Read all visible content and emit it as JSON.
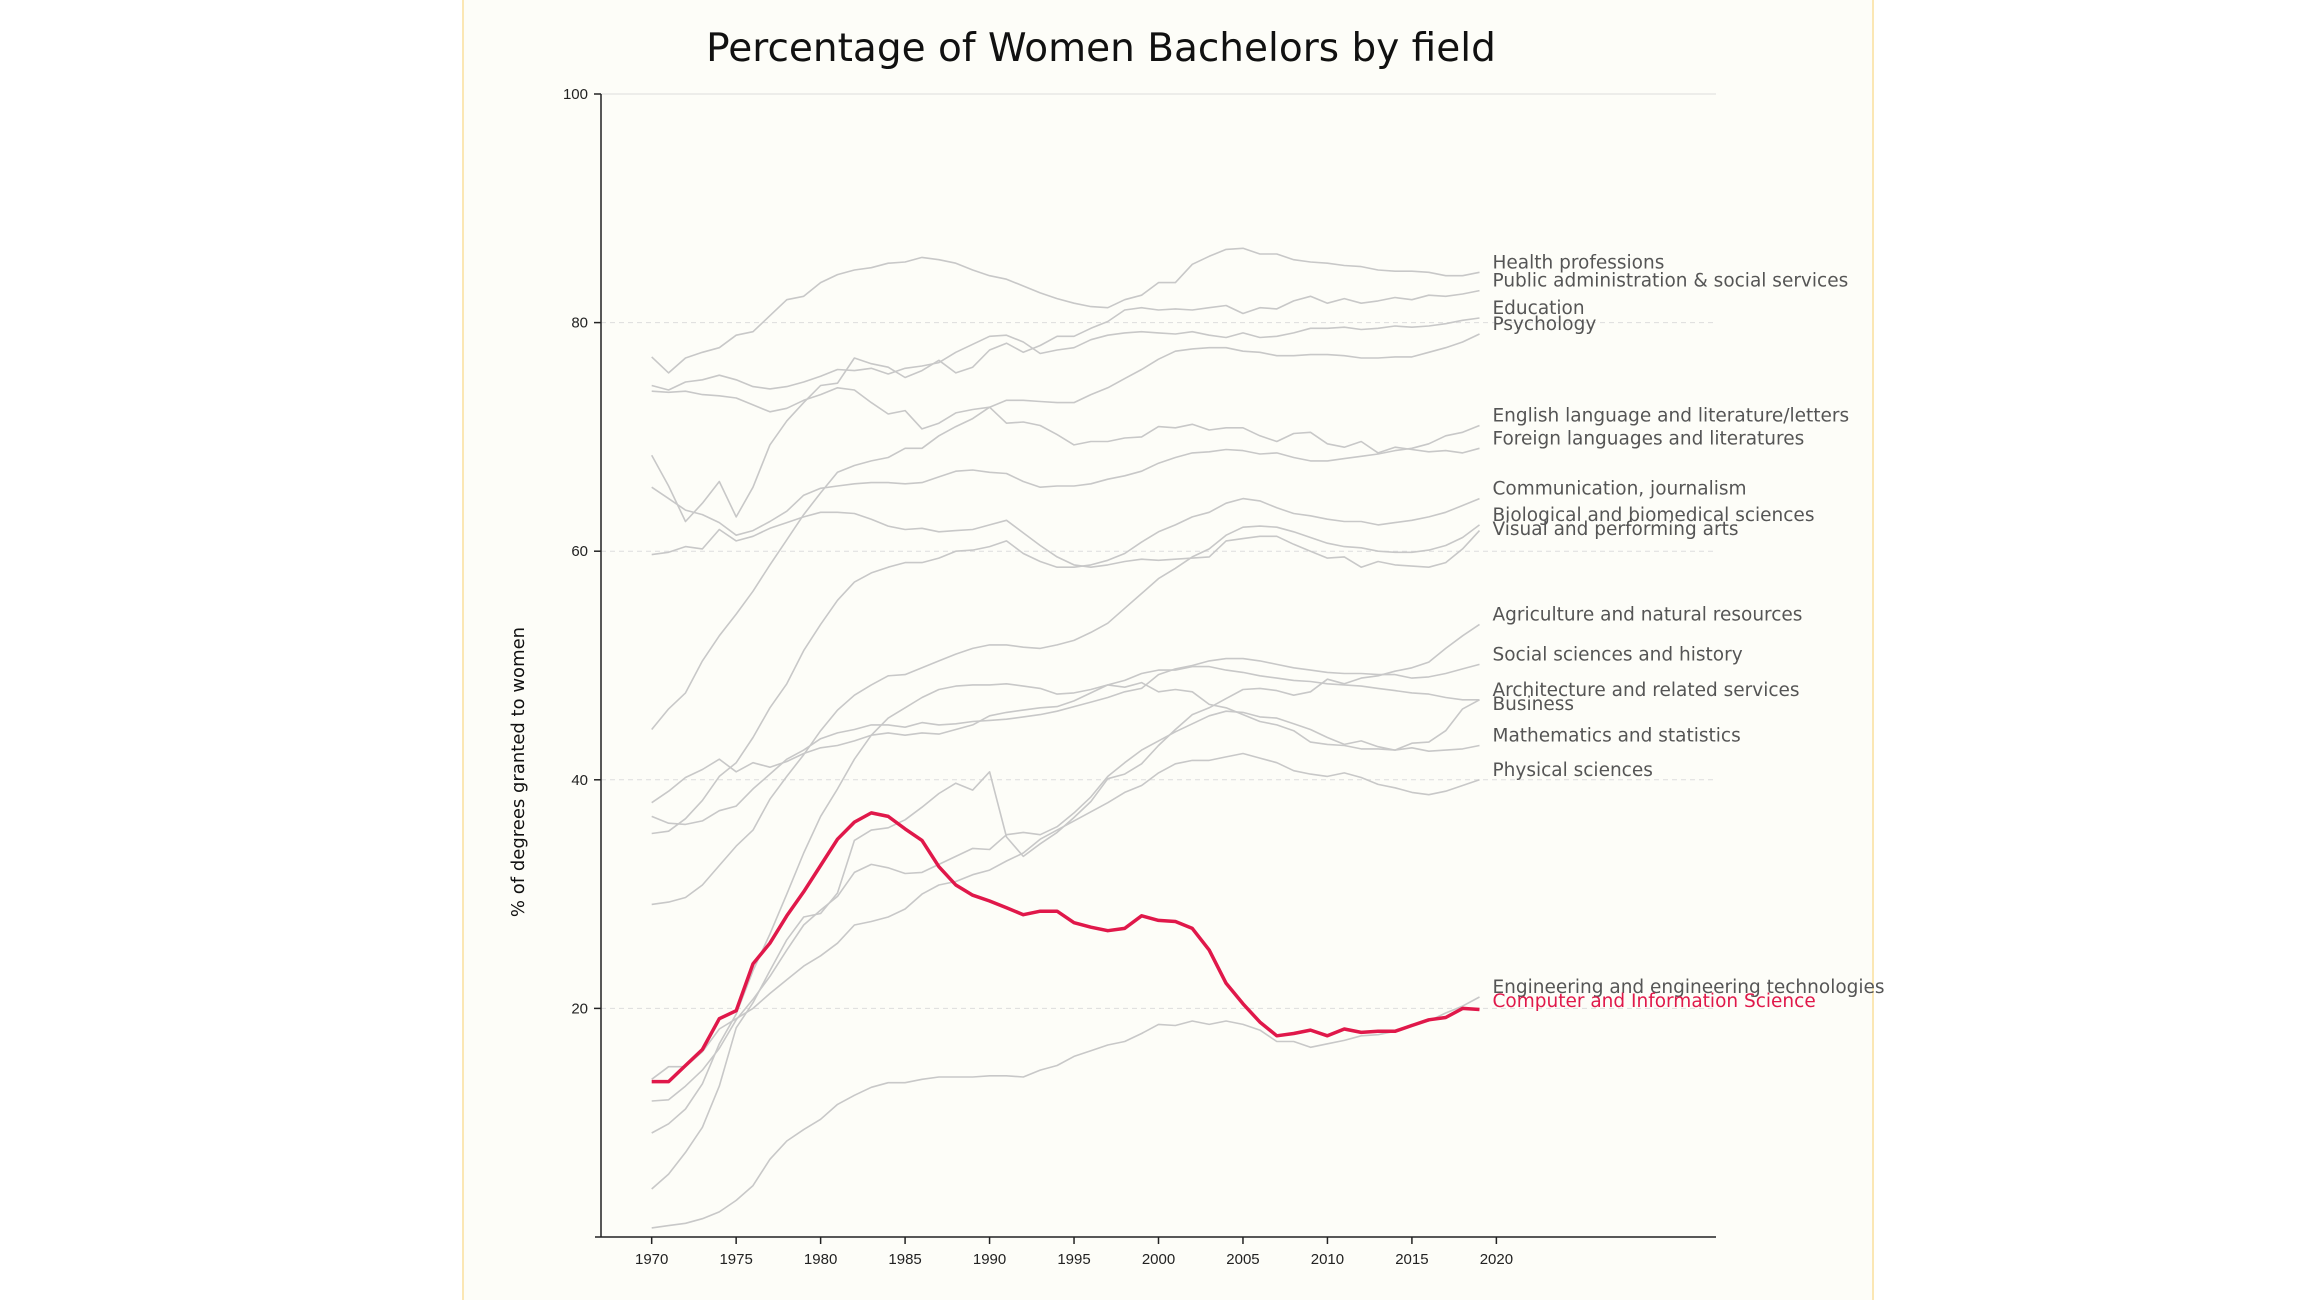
{
  "chart_data": {
    "type": "line",
    "title": "Percentage of Women Bachelors by field",
    "xlabel": "",
    "ylabel": "% of degrees granted to women",
    "xlim": [
      1967,
      2033
    ],
    "ylim": [
      0,
      100
    ],
    "xticks": [
      1970,
      1975,
      1980,
      1985,
      1990,
      1995,
      2000,
      2005,
      2010,
      2015,
      2020
    ],
    "yticks": [
      20,
      40,
      60,
      80,
      100
    ],
    "grid": "horizontal dashed",
    "legend": "direct labels at line ends",
    "colors": {
      "line": "#c8c8c8",
      "highlight": "#e0184a",
      "axis": "#222222",
      "grid": "#dddddd"
    },
    "highlight": "Computer and Information Science",
    "years": [
      1970,
      1971,
      1972,
      1973,
      1974,
      1975,
      1976,
      1977,
      1978,
      1979,
      1980,
      1981,
      1982,
      1983,
      1984,
      1985,
      1986,
      1987,
      1988,
      1989,
      1990,
      1991,
      1992,
      1993,
      1994,
      1995,
      1996,
      1997,
      1998,
      1999,
      2000,
      2001,
      2002,
      2003,
      2004,
      2005,
      2006,
      2007,
      2008,
      2009,
      2010,
      2011,
      2012,
      2013,
      2014,
      2015,
      2016,
      2017,
      2018,
      2019
    ],
    "series": [
      {
        "name": "Health professions",
        "values": [
          77.0,
          75.6,
          76.9,
          77.4,
          77.8,
          78.9,
          79.2,
          80.6,
          82.0,
          82.3,
          83.5,
          84.2,
          84.6,
          84.8,
          85.2,
          85.3,
          85.7,
          85.5,
          85.2,
          84.6,
          84.1,
          83.8,
          83.2,
          82.6,
          82.1,
          81.7,
          81.4,
          81.3,
          82.0,
          82.4,
          83.5,
          83.5,
          85.1,
          85.8,
          86.4,
          86.5,
          86.0,
          86.0,
          85.5,
          85.3,
          85.2,
          85.0,
          84.9,
          84.6,
          84.5,
          84.5,
          84.4,
          84.1,
          84.1,
          84.4
        ]
      },
      {
        "name": "Public administration & social services",
        "values": [
          68.4,
          65.7,
          62.6,
          64.2,
          66.1,
          63.0,
          65.6,
          69.3,
          71.4,
          73.0,
          74.5,
          74.7,
          76.9,
          76.4,
          76.1,
          75.2,
          75.8,
          76.7,
          75.6,
          76.1,
          77.6,
          78.2,
          77.4,
          78.0,
          78.8,
          78.8,
          79.5,
          80.1,
          81.1,
          81.3,
          81.1,
          81.2,
          81.1,
          81.3,
          81.5,
          80.8,
          81.3,
          81.2,
          81.9,
          82.3,
          81.7,
          82.1,
          81.7,
          81.9,
          82.2,
          82.0,
          82.4,
          82.3,
          82.5,
          82.8
        ]
      },
      {
        "name": "Education",
        "values": [
          74.5,
          74.1,
          74.8,
          75.0,
          75.4,
          75.0,
          74.4,
          74.2,
          74.4,
          74.8,
          75.3,
          75.9,
          75.8,
          76.0,
          75.5,
          76.0,
          76.2,
          76.5,
          77.4,
          78.1,
          78.8,
          78.9,
          78.3,
          77.3,
          77.6,
          77.8,
          78.5,
          78.9,
          79.1,
          79.2,
          79.1,
          79.0,
          79.2,
          78.9,
          78.7,
          79.1,
          78.7,
          78.8,
          79.1,
          79.5,
          79.5,
          79.6,
          79.4,
          79.5,
          79.7,
          79.6,
          79.7,
          79.9,
          80.2,
          80.4
        ]
      },
      {
        "name": "Psychology",
        "values": [
          44.4,
          46.2,
          47.6,
          50.4,
          52.6,
          54.5,
          56.5,
          58.8,
          61.0,
          63.2,
          65.1,
          66.9,
          67.5,
          67.9,
          68.2,
          69.0,
          69.0,
          70.1,
          70.9,
          71.6,
          72.6,
          73.2,
          73.2,
          73.1,
          73.0,
          73.0,
          73.7,
          74.3,
          75.1,
          75.9,
          76.8,
          77.5,
          77.7,
          77.8,
          77.8,
          77.5,
          77.4,
          77.1,
          77.1,
          77.2,
          77.2,
          77.1,
          76.9,
          76.9,
          77.0,
          77.0,
          77.4,
          77.8,
          78.3,
          79.0
        ]
      },
      {
        "name": "English language and literature/letters",
        "values": [
          65.6,
          64.6,
          63.6,
          63.2,
          62.5,
          61.4,
          61.8,
          62.6,
          63.5,
          64.9,
          65.5,
          65.7,
          65.9,
          66.0,
          66.0,
          65.9,
          66.0,
          66.5,
          67.0,
          67.1,
          66.9,
          66.8,
          66.1,
          65.6,
          65.7,
          65.7,
          65.9,
          66.3,
          66.6,
          67.0,
          67.7,
          68.2,
          68.6,
          68.7,
          68.9,
          68.8,
          68.5,
          68.6,
          68.2,
          67.9,
          67.9,
          68.1,
          68.3,
          68.5,
          68.8,
          69.0,
          69.4,
          70.1,
          70.4,
          71.0
        ]
      },
      {
        "name": "Foreign languages and literatures",
        "values": [
          74.0,
          73.9,
          74.0,
          73.7,
          73.6,
          73.4,
          72.8,
          72.2,
          72.5,
          73.2,
          73.7,
          74.3,
          74.1,
          73.0,
          72.0,
          72.3,
          70.7,
          71.2,
          72.1,
          72.4,
          72.6,
          71.2,
          71.3,
          71.0,
          70.2,
          69.3,
          69.6,
          69.6,
          69.9,
          70.0,
          70.9,
          70.8,
          71.1,
          70.6,
          70.8,
          70.8,
          70.1,
          69.6,
          70.3,
          70.4,
          69.4,
          69.1,
          69.6,
          68.6,
          69.1,
          68.9,
          68.7,
          68.8,
          68.6,
          69.0
        ]
      },
      {
        "name": "Communication, journalism",
        "values": [
          35.3,
          35.5,
          36.6,
          38.2,
          40.3,
          41.5,
          43.7,
          46.3,
          48.4,
          51.3,
          53.6,
          55.7,
          57.3,
          58.1,
          58.6,
          59.0,
          59.0,
          59.4,
          60.0,
          60.1,
          60.4,
          60.9,
          59.8,
          59.1,
          58.6,
          58.6,
          58.8,
          59.2,
          59.8,
          60.8,
          61.7,
          62.3,
          63.0,
          63.4,
          64.2,
          64.6,
          64.4,
          63.8,
          63.3,
          63.1,
          62.8,
          62.6,
          62.6,
          62.3,
          62.5,
          62.7,
          63.0,
          63.4,
          64.0,
          64.6
        ]
      },
      {
        "name": "Biological and biomedical sciences",
        "values": [
          29.1,
          29.3,
          29.7,
          30.8,
          32.5,
          34.2,
          35.6,
          38.3,
          40.3,
          42.2,
          44.3,
          46.1,
          47.4,
          48.3,
          49.1,
          49.2,
          49.8,
          50.4,
          51.0,
          51.5,
          51.8,
          51.8,
          51.6,
          51.5,
          51.8,
          52.2,
          52.9,
          53.7,
          55.0,
          56.3,
          57.6,
          58.5,
          59.5,
          60.2,
          61.4,
          62.1,
          62.2,
          62.1,
          61.7,
          61.2,
          60.7,
          60.4,
          60.3,
          60.0,
          59.9,
          59.9,
          60.1,
          60.5,
          61.2,
          62.3
        ]
      },
      {
        "name": "Visual and performing arts",
        "values": [
          59.7,
          59.9,
          60.4,
          60.2,
          61.9,
          60.9,
          61.3,
          62.0,
          62.5,
          63.0,
          63.4,
          63.4,
          63.3,
          62.8,
          62.2,
          61.9,
          62.0,
          61.7,
          61.8,
          61.9,
          62.3,
          62.7,
          61.6,
          60.5,
          59.5,
          58.8,
          58.6,
          58.8,
          59.1,
          59.3,
          59.2,
          59.3,
          59.4,
          59.5,
          60.9,
          61.1,
          61.3,
          61.3,
          60.6,
          60.0,
          59.4,
          59.5,
          58.6,
          59.1,
          58.8,
          58.7,
          58.6,
          59.0,
          60.2,
          61.8
        ]
      },
      {
        "name": "Agriculture and natural resources",
        "values": [
          4.2,
          5.5,
          7.4,
          9.6,
          13.2,
          18.3,
          20.5,
          23.3,
          26.0,
          28.0,
          28.3,
          30.1,
          34.7,
          35.6,
          35.8,
          36.5,
          37.6,
          38.8,
          39.7,
          39.1,
          40.7,
          35.0,
          33.3,
          34.4,
          35.4,
          36.7,
          38.1,
          40.1,
          40.5,
          41.4,
          43.0,
          44.4,
          45.7,
          46.3,
          47.1,
          47.9,
          48.0,
          47.8,
          47.4,
          47.7,
          48.8,
          48.4,
          48.9,
          49.1,
          49.5,
          49.8,
          50.3,
          51.5,
          52.6,
          53.6
        ]
      },
      {
        "name": "Social sciences and history",
        "values": [
          36.8,
          36.2,
          36.1,
          36.4,
          37.3,
          37.7,
          39.2,
          40.5,
          41.8,
          42.6,
          43.6,
          44.1,
          44.4,
          44.8,
          44.8,
          44.6,
          45.0,
          44.8,
          44.9,
          45.1,
          45.2,
          45.3,
          45.5,
          45.7,
          46.0,
          46.4,
          46.8,
          47.2,
          47.7,
          48.0,
          49.2,
          49.7,
          50.0,
          50.4,
          50.6,
          50.6,
          50.4,
          50.1,
          49.8,
          49.6,
          49.4,
          49.3,
          49.3,
          49.2,
          49.2,
          48.9,
          49.0,
          49.3,
          49.7,
          50.1
        ]
      },
      {
        "name": "Architecture and related services",
        "values": [
          11.9,
          12.0,
          13.2,
          14.6,
          16.5,
          19.0,
          20.8,
          22.8,
          25.1,
          27.3,
          28.6,
          29.8,
          31.9,
          32.6,
          32.3,
          31.8,
          31.9,
          32.6,
          33.3,
          34.0,
          33.9,
          35.2,
          35.4,
          35.2,
          35.9,
          37.1,
          38.5,
          40.3,
          41.5,
          42.6,
          43.4,
          44.2,
          44.9,
          45.6,
          46.0,
          45.9,
          45.5,
          45.4,
          44.9,
          44.4,
          43.7,
          43.1,
          43.4,
          42.9,
          42.6,
          43.2,
          43.3,
          44.3,
          46.2,
          47.0
        ]
      },
      {
        "name": "Business",
        "values": [
          9.1,
          9.9,
          11.2,
          13.4,
          16.9,
          19.5,
          23.3,
          26.5,
          30.0,
          33.6,
          36.8,
          39.2,
          41.8,
          43.9,
          45.4,
          46.3,
          47.2,
          47.9,
          48.2,
          48.3,
          48.3,
          48.4,
          48.2,
          48.0,
          47.5,
          47.6,
          47.9,
          48.3,
          48.7,
          49.3,
          49.6,
          49.6,
          49.9,
          49.9,
          49.6,
          49.4,
          49.1,
          48.9,
          48.7,
          48.6,
          48.4,
          48.3,
          48.2,
          48.0,
          47.8,
          47.6,
          47.5,
          47.2,
          47.0,
          47.0
        ]
      },
      {
        "name": "Mathematics and statistics",
        "values": [
          38.0,
          39.0,
          40.2,
          40.9,
          41.8,
          40.7,
          41.5,
          41.1,
          41.6,
          42.3,
          42.8,
          43.0,
          43.4,
          43.9,
          44.1,
          43.9,
          44.1,
          44.0,
          44.4,
          44.8,
          45.6,
          45.9,
          46.1,
          46.3,
          46.4,
          46.9,
          47.6,
          48.3,
          48.1,
          48.5,
          47.7,
          47.9,
          47.7,
          46.6,
          46.3,
          45.7,
          45.1,
          44.8,
          44.3,
          43.3,
          43.1,
          43.0,
          42.7,
          42.7,
          42.6,
          42.8,
          42.5,
          42.6,
          42.7,
          43.0
        ]
      },
      {
        "name": "Physical sciences",
        "values": [
          13.8,
          14.9,
          14.9,
          16.2,
          18.2,
          19.1,
          20.0,
          21.3,
          22.5,
          23.7,
          24.6,
          25.7,
          27.3,
          27.6,
          28.0,
          28.7,
          30.0,
          30.8,
          31.1,
          31.7,
          32.1,
          32.9,
          33.6,
          34.8,
          35.6,
          36.4,
          37.2,
          38.0,
          38.9,
          39.5,
          40.6,
          41.4,
          41.7,
          41.7,
          42.0,
          42.3,
          41.9,
          41.5,
          40.8,
          40.5,
          40.3,
          40.6,
          40.2,
          39.6,
          39.3,
          38.9,
          38.7,
          39.0,
          39.5,
          40.0
        ]
      },
      {
        "name": "Engineering and engineering technologies",
        "values": [
          0.8,
          1.0,
          1.2,
          1.6,
          2.2,
          3.2,
          4.5,
          6.8,
          8.4,
          9.4,
          10.3,
          11.6,
          12.4,
          13.1,
          13.5,
          13.5,
          13.8,
          14.0,
          14.0,
          14.0,
          14.1,
          14.1,
          14.0,
          14.6,
          15.0,
          15.8,
          16.3,
          16.8,
          17.1,
          17.8,
          18.6,
          18.5,
          18.9,
          18.6,
          18.9,
          18.6,
          18.1,
          17.1,
          17.1,
          16.6,
          16.9,
          17.2,
          17.6,
          17.7,
          18.0,
          18.6,
          18.9,
          19.6,
          20.2,
          21.0
        ]
      },
      {
        "name": "Computer and Information Science",
        "values": [
          13.6,
          13.6,
          15.0,
          16.4,
          19.1,
          19.8,
          23.9,
          25.7,
          28.1,
          30.2,
          32.5,
          34.8,
          36.3,
          37.1,
          36.8,
          35.7,
          34.7,
          32.4,
          30.8,
          29.9,
          29.4,
          28.8,
          28.2,
          28.5,
          28.5,
          27.5,
          27.1,
          26.8,
          27.0,
          28.1,
          27.7,
          27.6,
          27.0,
          25.1,
          22.2,
          20.4,
          18.8,
          17.6,
          17.8,
          18.1,
          17.6,
          18.2,
          17.9,
          18.0,
          18.0,
          18.5,
          19.0,
          19.2,
          20.0,
          19.9
        ]
      }
    ]
  }
}
